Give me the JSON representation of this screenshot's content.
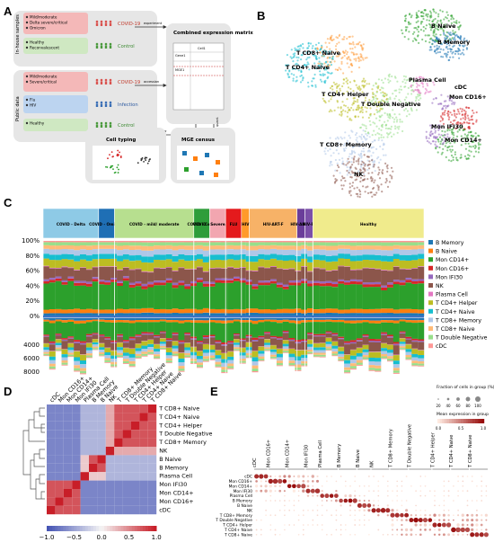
{
  "panels": {
    "a": "A",
    "b": "B",
    "c": "C",
    "d": "D",
    "e": "E"
  },
  "panel_a": {
    "in_house_label": "In-house samples",
    "public_label": "Public data",
    "groups": [
      {
        "items": [
          "Mild/moderate",
          "Delta severe/critical",
          "Omicron"
        ],
        "label": "COVID-19",
        "color": "#f4b8b8"
      },
      {
        "items": [
          "Healthy",
          "Reconvalescent"
        ],
        "label": "Control",
        "color": "#cfe8c2"
      },
      {
        "items": [
          "Mild/moderate",
          "Severe/critical"
        ],
        "label": "COVID-19",
        "color": "#f4b8b8"
      },
      {
        "items": [
          "Flu",
          "HIV"
        ],
        "label": "Infection",
        "color": "#bcd4f0"
      },
      {
        "items": [
          "Healthy"
        ],
        "label": "Control",
        "color": "#cfe8c2"
      }
    ],
    "experiment": "experiment",
    "accession": "accession",
    "matrix_title": "Combined expression matrix",
    "matrix_cell": "Cell1",
    "matrix_gene": "Gene1",
    "matrix_gene2": "MGE1",
    "workflow": "scRNA-seq workflow",
    "mge_arrow": "MGE quant.",
    "cell_typing": "Cell typing",
    "mge_census": "MGE census"
  },
  "panel_b": {
    "clusters": [
      "B Naive",
      "B Memory",
      "T CD8+ Naive",
      "T CD4+ Naive",
      "Plasma Cell",
      "cDC",
      "Mon CD16+",
      "T CD4+ Helper",
      "T Double Negative",
      "Mon IFI30",
      "Mon CD14+",
      "T CD8+ Memory",
      "NK"
    ]
  },
  "panel_c": {
    "groups": [
      {
        "label": "COVID - Delta",
        "color": "#8ecae6",
        "n": 7
      },
      {
        "label": "COVID - Omicron",
        "color": "#1f6fb5",
        "n": 2
      },
      {
        "label": "COVID - mild/ moderate",
        "color": "#b7df8f",
        "n": 10
      },
      {
        "label": "COVID - Conv.",
        "color": "#2e9d3a",
        "n": 2
      },
      {
        "label": "COVID - Severe/ critical",
        "color": "#f2a6b0",
        "n": 2
      },
      {
        "label": "FLU",
        "color": "#e41a1c",
        "n": 2
      },
      {
        "label": "HIV",
        "color": "#ff9a2a",
        "n": 1
      },
      {
        "label": "HIV-ART-F",
        "color": "#f7b267",
        "n": 6
      },
      {
        "label": "HIV-ART-N",
        "color": "#6a3d9a",
        "n": 1
      },
      {
        "label": "HIV-FI",
        "color": "#7b4fa8",
        "n": 1
      },
      {
        "label": "Healthy",
        "color": "#f0eb8c",
        "n": 14
      }
    ],
    "y_top_ticks": [
      "100%",
      "80%",
      "60%",
      "40%",
      "20%",
      "0%"
    ],
    "y_bottom_ticks": [
      "4000",
      "6000",
      "8000"
    ],
    "legend": [
      {
        "label": "B Memory",
        "color": "#1f77b4"
      },
      {
        "label": "B Naive",
        "color": "#ff7f0e"
      },
      {
        "label": "Mon CD14+",
        "color": "#2ca02c"
      },
      {
        "label": "Mon CD16+",
        "color": "#d62728"
      },
      {
        "label": "Mon IFI30",
        "color": "#9467bd"
      },
      {
        "label": "NK",
        "color": "#8c564b"
      },
      {
        "label": "Plasma Cell",
        "color": "#e377c2"
      },
      {
        "label": "T CD4+ Helper",
        "color": "#bcbd22"
      },
      {
        "label": "T CD4+ Naive",
        "color": "#17becf"
      },
      {
        "label": "T CD8+ Memory",
        "color": "#aec7e8"
      },
      {
        "label": "T CD8+ Naive",
        "color": "#ffbb78"
      },
      {
        "label": "T Double Negative",
        "color": "#98df8a"
      },
      {
        "label": "cDC",
        "color": "#ff9896"
      }
    ]
  },
  "panel_d": {
    "col_labels": [
      "cDC",
      "Mon CD16+",
      "Mon CD14+",
      "Mon IFI30",
      "Plasma Cell",
      "B Memory",
      "B Naive",
      "NK",
      "T CD8+ Memory",
      "T Double Negative",
      "T CD4+ Helper",
      "T CD4+ Naive",
      "T CD8+ Naive"
    ],
    "row_labels": [
      "T CD8+ Naive",
      "T CD4+ Naive",
      "T CD4+ Helper",
      "T Double Negative",
      "T CD8+ Memory",
      "NK",
      "B Naive",
      "B Memory",
      "Plasma Cell",
      "Mon IFI30",
      "Mon CD14+",
      "Mon CD16+",
      "cDC"
    ],
    "colorbar_ticks": [
      "−1.0",
      "−0.5",
      "0.0",
      "0.5",
      "1.0"
    ]
  },
  "panel_e": {
    "rows": [
      "cDC",
      "Mon CD16+",
      "Mon CD14+",
      "Mon IFI30",
      "Plasma Cell",
      "B Memory",
      "B Naive",
      "NK",
      "T CD8+ Memory",
      "T Double Negative",
      "T CD4+ Helper",
      "T CD4+ Naive",
      "T CD8+ Naive"
    ],
    "groups": [
      "cDC",
      "Mon CD16+",
      "Mon CD14+",
      "Mon IFI30",
      "Plasma Cell",
      "B Memory",
      "B Naive",
      "NK",
      "T CD8+ Memory",
      "T Double Negative",
      "T CD4+ Helper",
      "T CD4+ Naive",
      "T CD8+ Naive"
    ],
    "size_legend_title": "Fraction of cells in group (%)",
    "size_ticks": [
      "20",
      "40",
      "60",
      "80",
      "100"
    ],
    "color_legend_title": "Mean expression in group",
    "color_ticks": [
      "0.0",
      "0.5",
      "1.0"
    ]
  }
}
